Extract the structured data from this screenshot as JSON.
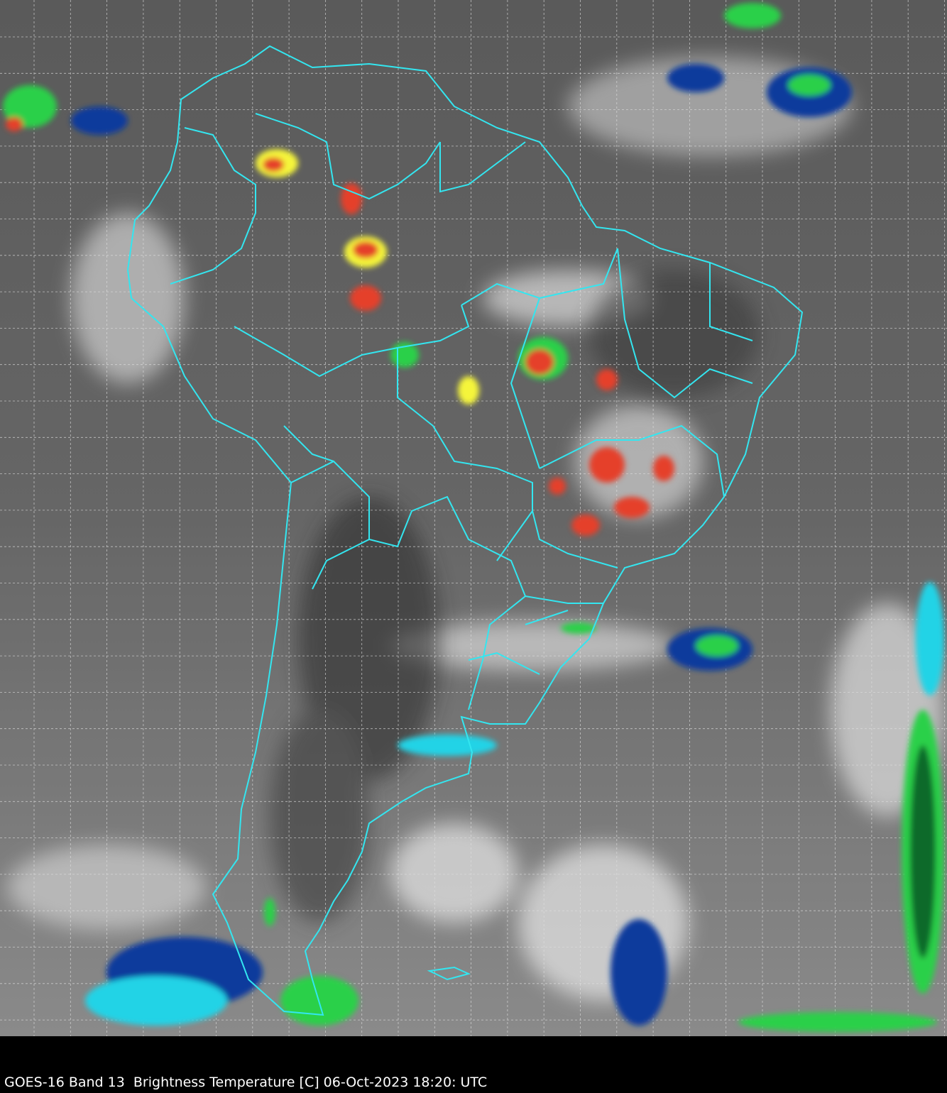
{
  "caption": "GOES-16 Band 13  Brightness Temperature [C] 06-Oct-2023 18:20: UTC",
  "colors": {
    "coastline": "#33e6f0",
    "grid": "#e0e0e0",
    "cold_cloud_scale": [
      "#ffffff",
      "#22d3e6",
      "#0a3b9c",
      "#2bd04a",
      "#f5f53a",
      "#e5402a",
      "#5a0b0b"
    ]
  }
}
